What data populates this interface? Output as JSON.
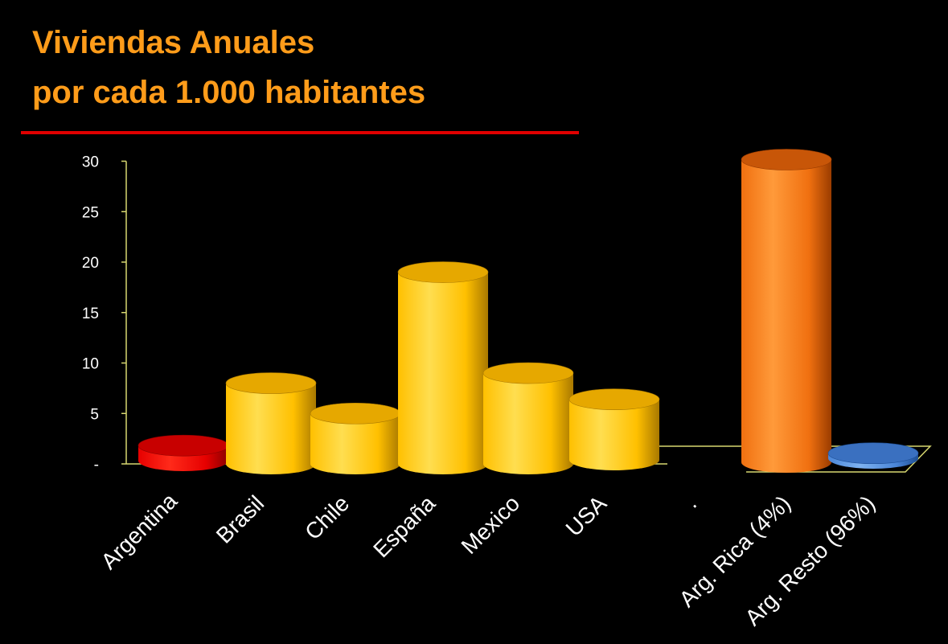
{
  "header": {
    "title_line1": "Viviendas Anuales",
    "title_line2": "por cada 1.000 habitantes"
  },
  "colors": {
    "title": "#ff9c1a",
    "rule": "#e00000",
    "axis": "#d8d870",
    "red": "#e60000",
    "yellow": "#ffc000",
    "orange": "#f07010",
    "blue": "#4a86d8"
  },
  "chart_data": {
    "type": "bar",
    "style": "3d-cylinder",
    "title": "Viviendas Anuales por cada 1.000 habitantes",
    "xlabel": "",
    "ylabel": "",
    "ylim": [
      0,
      30
    ],
    "yticks": [
      0,
      5,
      10,
      15,
      20,
      25,
      30
    ],
    "ytick_labels": [
      "-",
      "5",
      "10",
      "15",
      "20",
      "25",
      "30"
    ],
    "grid": false,
    "legend": "none",
    "groups": [
      {
        "categories": [
          "Argentina",
          "Brasil",
          "Chile",
          "España",
          "Mexico",
          "USA"
        ],
        "values": [
          1.5,
          8,
          5,
          19,
          9,
          6
        ],
        "colors": [
          "red",
          "yellow",
          "yellow",
          "yellow",
          "yellow",
          "yellow"
        ]
      },
      {
        "categories": [
          ".",
          "Arg. Rica (4%)",
          "Arg. Resto (96%)"
        ],
        "values": [
          null,
          30,
          0.5
        ],
        "colors": [
          null,
          "orange",
          "blue"
        ]
      }
    ]
  }
}
